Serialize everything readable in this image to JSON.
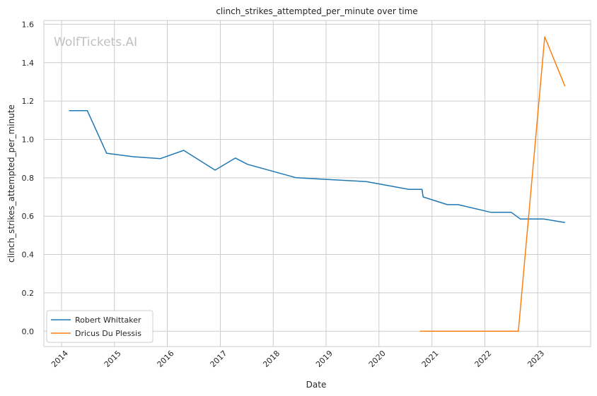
{
  "chart_data": {
    "type": "line",
    "title": "clinch_strikes_attempted_per_minute over time",
    "xlabel": "Date",
    "ylabel": "clinch_strikes_attempted_per_minute",
    "watermark": "WolfTickets.AI",
    "x_ticks": [
      "2014",
      "2015",
      "2016",
      "2017",
      "2018",
      "2019",
      "2020",
      "2021",
      "2022",
      "2023"
    ],
    "y_ticks": [
      "0.0",
      "0.2",
      "0.4",
      "0.6",
      "0.8",
      "1.0",
      "1.2",
      "1.4",
      "1.6"
    ],
    "xlim": [
      "2013-09-01",
      "2024-01-01"
    ],
    "ylim": [
      -0.08,
      1.62
    ],
    "grid": true,
    "legend_position": "lower-left",
    "series": [
      {
        "name": "Robert Whittaker",
        "color": "#1f77b4",
        "points": [
          [
            "2014-02-22",
            1.15
          ],
          [
            "2014-06-28",
            1.15
          ],
          [
            "2014-11-08",
            0.928
          ],
          [
            "2015-05-10",
            0.91
          ],
          [
            "2015-11-14",
            0.9
          ],
          [
            "2016-04-23",
            0.943
          ],
          [
            "2016-11-26",
            0.84
          ],
          [
            "2017-04-15",
            0.903
          ],
          [
            "2017-07-08",
            0.87
          ],
          [
            "2018-06-09",
            0.8
          ],
          [
            "2019-10-06",
            0.78
          ],
          [
            "2020-07-25",
            0.74
          ],
          [
            "2020-10-24",
            0.74
          ],
          [
            "2020-11-01",
            0.7
          ],
          [
            "2021-04-17",
            0.66
          ],
          [
            "2021-06-30",
            0.66
          ],
          [
            "2022-02-12",
            0.62
          ],
          [
            "2022-07-02",
            0.62
          ],
          [
            "2022-09-03",
            0.585
          ],
          [
            "2023-02-12",
            0.585
          ],
          [
            "2023-07-08",
            0.567
          ]
        ]
      },
      {
        "name": "Dricus Du Plessis",
        "color": "#ff7f0e",
        "points": [
          [
            "2020-10-11",
            0.0
          ],
          [
            "2021-03-20",
            0.0
          ],
          [
            "2021-07-10",
            0.0
          ],
          [
            "2022-04-09",
            0.0
          ],
          [
            "2022-08-20",
            0.0
          ],
          [
            "2023-02-18",
            1.535
          ],
          [
            "2023-07-08",
            1.277
          ]
        ]
      }
    ]
  }
}
